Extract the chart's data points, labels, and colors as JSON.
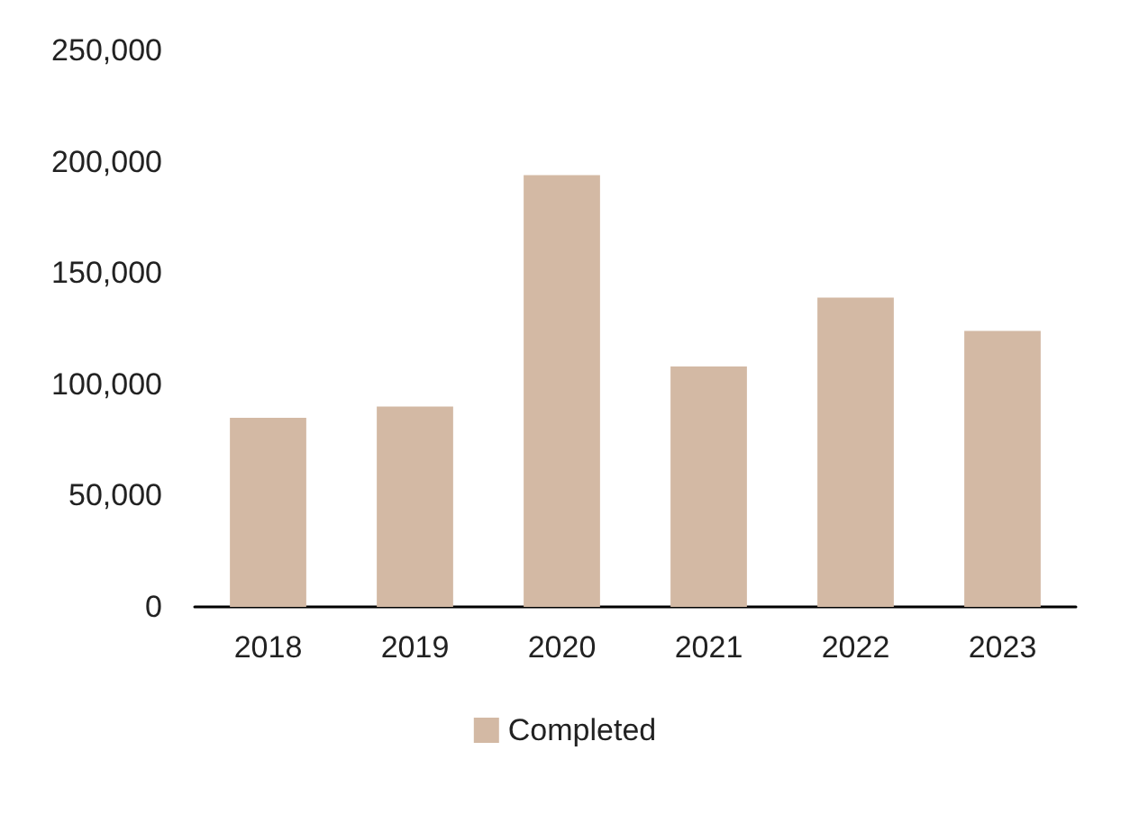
{
  "chart_data": {
    "type": "bar",
    "categories": [
      "2018",
      "2019",
      "2020",
      "2021",
      "2022",
      "2023"
    ],
    "series": [
      {
        "name": "Completed",
        "color": "#d3b9a4",
        "values": [
          85000,
          90000,
          194000,
          108000,
          139000,
          124000
        ]
      }
    ],
    "ylim": [
      0,
      250000
    ],
    "yticks": [
      0,
      {
        "value": 50000,
        "label": "50,000"
      },
      {
        "value": 100000,
        "label": "100,000"
      },
      {
        "value": 150000,
        "label": "150,000"
      },
      {
        "value": 200000,
        "label": "200,000"
      },
      {
        "value": 250000,
        "label": "250,000"
      }
    ],
    "legend": "bottom"
  }
}
